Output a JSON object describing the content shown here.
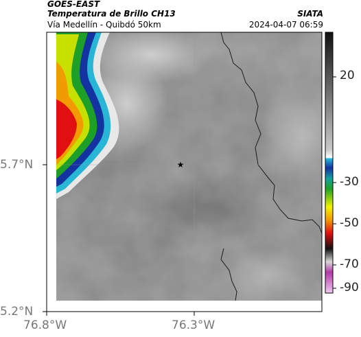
{
  "header": {
    "satellite": "GOES-EAST",
    "product": "Temperatura de Brillo CH13",
    "route": "Vía Medellín - Quibdó 50km",
    "organization": "SIATA",
    "timestamp": "2024-04-07 06:59"
  },
  "map": {
    "lat_ticks": [
      "5.7°N",
      "5.2°N"
    ],
    "lon_ticks": [
      "76.8°W",
      "76.3°W"
    ],
    "marker": "star-icon"
  },
  "colorbar": {
    "labels": [
      "20",
      "-30",
      "-50",
      "-70",
      "-90"
    ],
    "colors": {
      "warm": "#888888",
      "cyan": "#29b6d6",
      "blue": "#1432a0",
      "green": "#1ea028",
      "yellow": "#f2f200",
      "red": "#e01010",
      "black": "#111111",
      "magenta": "#b23aa6"
    }
  }
}
